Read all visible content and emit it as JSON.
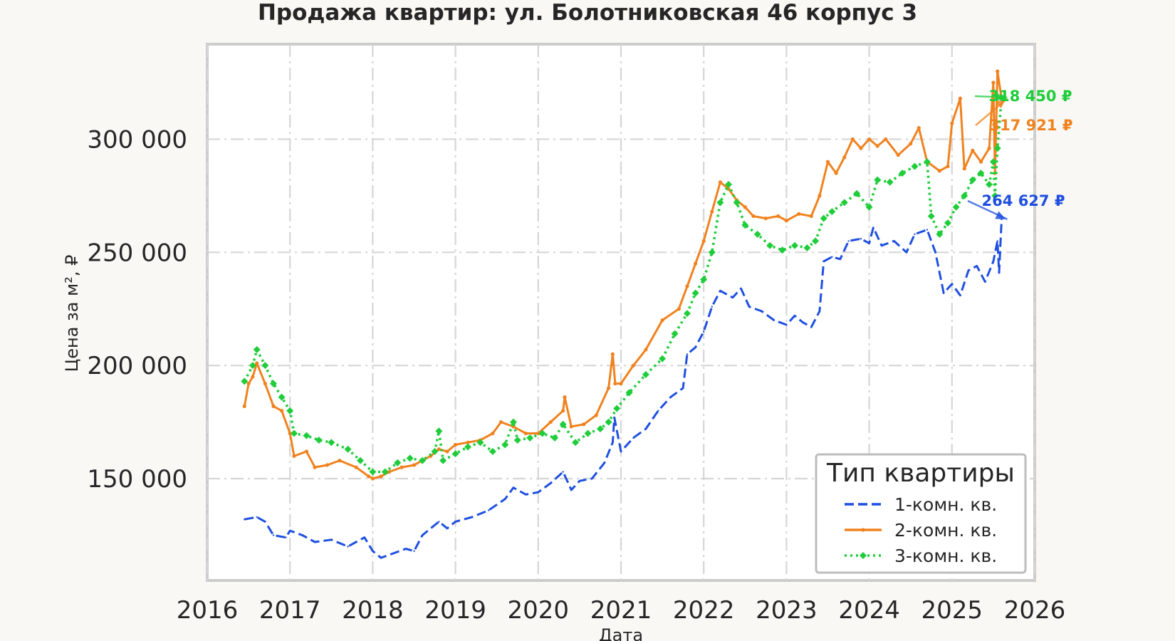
{
  "chart_data": {
    "type": "line",
    "title": "Продажа квартир: ул. Болотниковская 46 корпус 3",
    "xlabel": "Дата",
    "ylabel": "Цена за м², ₽",
    "xlim": [
      2016.0,
      2026.0
    ],
    "ylim": [
      105000,
      342000
    ],
    "x_ticks": [
      2016,
      2017,
      2018,
      2019,
      2020,
      2021,
      2022,
      2023,
      2024,
      2025,
      2026
    ],
    "x_tick_labels": [
      "2016",
      "2017",
      "2018",
      "2019",
      "2020",
      "2021",
      "2022",
      "2023",
      "2024",
      "2025",
      "2026"
    ],
    "y_ticks": [
      150000,
      200000,
      250000,
      300000
    ],
    "y_tick_labels": [
      "150 000",
      "200 000",
      "250 000",
      "300 000"
    ],
    "grid": true,
    "legend": {
      "title": "Тип квартиры",
      "placement": "lower-right"
    },
    "series": [
      {
        "name": "1-комн. кв.",
        "color": "#1f4fe0",
        "style": "dashed",
        "marker": "none",
        "last_label": "264 627 ₽",
        "points": [
          [
            2016.45,
            132000
          ],
          [
            2016.6,
            133000
          ],
          [
            2016.7,
            131000
          ],
          [
            2016.8,
            125000
          ],
          [
            2016.95,
            124000
          ],
          [
            2017.0,
            127000
          ],
          [
            2017.15,
            125000
          ],
          [
            2017.3,
            122000
          ],
          [
            2017.5,
            123000
          ],
          [
            2017.7,
            120000
          ],
          [
            2017.9,
            124000
          ],
          [
            2018.0,
            118000
          ],
          [
            2018.1,
            115000
          ],
          [
            2018.25,
            117000
          ],
          [
            2018.4,
            119000
          ],
          [
            2018.5,
            118000
          ],
          [
            2018.6,
            125000
          ],
          [
            2018.8,
            131000
          ],
          [
            2018.9,
            128000
          ],
          [
            2019.0,
            131000
          ],
          [
            2019.2,
            133000
          ],
          [
            2019.4,
            136000
          ],
          [
            2019.6,
            141000
          ],
          [
            2019.7,
            146000
          ],
          [
            2019.85,
            143000
          ],
          [
            2020.0,
            144000
          ],
          [
            2020.15,
            148000
          ],
          [
            2020.3,
            153000
          ],
          [
            2020.4,
            145000
          ],
          [
            2020.5,
            149000
          ],
          [
            2020.65,
            150000
          ],
          [
            2020.8,
            157000
          ],
          [
            2020.9,
            166000
          ],
          [
            2020.92,
            177000
          ],
          [
            2021.0,
            162000
          ],
          [
            2021.15,
            168000
          ],
          [
            2021.3,
            172000
          ],
          [
            2021.45,
            180000
          ],
          [
            2021.6,
            186000
          ],
          [
            2021.75,
            190000
          ],
          [
            2021.8,
            205000
          ],
          [
            2021.9,
            208000
          ],
          [
            2022.0,
            215000
          ],
          [
            2022.1,
            226000
          ],
          [
            2022.2,
            233000
          ],
          [
            2022.35,
            230000
          ],
          [
            2022.45,
            234000
          ],
          [
            2022.55,
            226000
          ],
          [
            2022.7,
            224000
          ],
          [
            2022.85,
            220000
          ],
          [
            2023.0,
            218000
          ],
          [
            2023.1,
            222000
          ],
          [
            2023.2,
            219000
          ],
          [
            2023.3,
            217000
          ],
          [
            2023.4,
            224000
          ],
          [
            2023.45,
            246000
          ],
          [
            2023.55,
            248000
          ],
          [
            2023.65,
            247000
          ],
          [
            2023.75,
            255000
          ],
          [
            2023.9,
            256000
          ],
          [
            2024.0,
            254000
          ],
          [
            2024.05,
            261000
          ],
          [
            2024.15,
            253000
          ],
          [
            2024.3,
            255000
          ],
          [
            2024.45,
            250000
          ],
          [
            2024.55,
            258000
          ],
          [
            2024.7,
            260000
          ],
          [
            2024.8,
            250000
          ],
          [
            2024.9,
            232000
          ],
          [
            2025.0,
            236000
          ],
          [
            2025.1,
            231000
          ],
          [
            2025.2,
            242000
          ],
          [
            2025.3,
            244000
          ],
          [
            2025.4,
            237000
          ],
          [
            2025.5,
            246000
          ],
          [
            2025.55,
            255000
          ],
          [
            2025.57,
            241000
          ],
          [
            2025.6,
            264627
          ]
        ]
      },
      {
        "name": "2-комн. кв.",
        "color": "#f0821e",
        "style": "solid",
        "marker": "star",
        "last_label": "317 921 ₽",
        "points": [
          [
            2016.45,
            182000
          ],
          [
            2016.5,
            192000
          ],
          [
            2016.55,
            195000
          ],
          [
            2016.6,
            201000
          ],
          [
            2016.7,
            192000
          ],
          [
            2016.8,
            182000
          ],
          [
            2016.9,
            180000
          ],
          [
            2017.0,
            170000
          ],
          [
            2017.05,
            160000
          ],
          [
            2017.2,
            162000
          ],
          [
            2017.3,
            155000
          ],
          [
            2017.45,
            156000
          ],
          [
            2017.6,
            158000
          ],
          [
            2017.8,
            155000
          ],
          [
            2017.95,
            151000
          ],
          [
            2018.0,
            150000
          ],
          [
            2018.1,
            151000
          ],
          [
            2018.2,
            153000
          ],
          [
            2018.35,
            155000
          ],
          [
            2018.5,
            156000
          ],
          [
            2018.6,
            158000
          ],
          [
            2018.7,
            160000
          ],
          [
            2018.8,
            163000
          ],
          [
            2018.9,
            162000
          ],
          [
            2019.0,
            165000
          ],
          [
            2019.15,
            166000
          ],
          [
            2019.3,
            167000
          ],
          [
            2019.45,
            170000
          ],
          [
            2019.55,
            175000
          ],
          [
            2019.7,
            173000
          ],
          [
            2019.85,
            170000
          ],
          [
            2020.0,
            170000
          ],
          [
            2020.15,
            175000
          ],
          [
            2020.3,
            180000
          ],
          [
            2020.32,
            186000
          ],
          [
            2020.4,
            173000
          ],
          [
            2020.55,
            174000
          ],
          [
            2020.7,
            178000
          ],
          [
            2020.85,
            190000
          ],
          [
            2020.9,
            205000
          ],
          [
            2020.93,
            192000
          ],
          [
            2021.0,
            192000
          ],
          [
            2021.15,
            200000
          ],
          [
            2021.3,
            207000
          ],
          [
            2021.5,
            220000
          ],
          [
            2021.7,
            225000
          ],
          [
            2021.8,
            235000
          ],
          [
            2021.9,
            245000
          ],
          [
            2022.0,
            255000
          ],
          [
            2022.1,
            268000
          ],
          [
            2022.2,
            281000
          ],
          [
            2022.3,
            278000
          ],
          [
            2022.4,
            273000
          ],
          [
            2022.5,
            270000
          ],
          [
            2022.6,
            266000
          ],
          [
            2022.75,
            265000
          ],
          [
            2022.9,
            266000
          ],
          [
            2023.0,
            264000
          ],
          [
            2023.15,
            267000
          ],
          [
            2023.3,
            266000
          ],
          [
            2023.4,
            275000
          ],
          [
            2023.5,
            290000
          ],
          [
            2023.6,
            285000
          ],
          [
            2023.7,
            292000
          ],
          [
            2023.8,
            300000
          ],
          [
            2023.9,
            296000
          ],
          [
            2024.0,
            300000
          ],
          [
            2024.1,
            297000
          ],
          [
            2024.2,
            300000
          ],
          [
            2024.35,
            293000
          ],
          [
            2024.5,
            298000
          ],
          [
            2024.6,
            305000
          ],
          [
            2024.7,
            290000
          ],
          [
            2024.85,
            286000
          ],
          [
            2024.95,
            288000
          ],
          [
            2025.0,
            307000
          ],
          [
            2025.1,
            318000
          ],
          [
            2025.15,
            287000
          ],
          [
            2025.25,
            295000
          ],
          [
            2025.35,
            290000
          ],
          [
            2025.45,
            296000
          ],
          [
            2025.5,
            325000
          ],
          [
            2025.52,
            285000
          ],
          [
            2025.55,
            330000
          ],
          [
            2025.6,
            317921
          ]
        ]
      },
      {
        "name": "3-комн. кв.",
        "color": "#1fcd3a",
        "style": "dotted",
        "marker": "diamond",
        "last_label": "318 450 ₽",
        "points": [
          [
            2016.45,
            193000
          ],
          [
            2016.55,
            200000
          ],
          [
            2016.6,
            207000
          ],
          [
            2016.7,
            200000
          ],
          [
            2016.8,
            192000
          ],
          [
            2016.9,
            186000
          ],
          [
            2017.0,
            180000
          ],
          [
            2017.05,
            170000
          ],
          [
            2017.2,
            169000
          ],
          [
            2017.35,
            167000
          ],
          [
            2017.5,
            166000
          ],
          [
            2017.7,
            163000
          ],
          [
            2017.85,
            158000
          ],
          [
            2018.0,
            153000
          ],
          [
            2018.15,
            153000
          ],
          [
            2018.3,
            157000
          ],
          [
            2018.45,
            159000
          ],
          [
            2018.6,
            158000
          ],
          [
            2018.75,
            162000
          ],
          [
            2018.8,
            171000
          ],
          [
            2018.85,
            158000
          ],
          [
            2019.0,
            161000
          ],
          [
            2019.15,
            164000
          ],
          [
            2019.3,
            166000
          ],
          [
            2019.45,
            162000
          ],
          [
            2019.6,
            165000
          ],
          [
            2019.7,
            175000
          ],
          [
            2019.75,
            167000
          ],
          [
            2019.9,
            168000
          ],
          [
            2020.05,
            170000
          ],
          [
            2020.2,
            168000
          ],
          [
            2020.3,
            174000
          ],
          [
            2020.45,
            166000
          ],
          [
            2020.6,
            170000
          ],
          [
            2020.75,
            172000
          ],
          [
            2020.85,
            175000
          ],
          [
            2020.95,
            181000
          ],
          [
            2021.1,
            188000
          ],
          [
            2021.3,
            196000
          ],
          [
            2021.5,
            203000
          ],
          [
            2021.65,
            214000
          ],
          [
            2021.8,
            223000
          ],
          [
            2021.9,
            232000
          ],
          [
            2022.0,
            238000
          ],
          [
            2022.1,
            250000
          ],
          [
            2022.2,
            272000
          ],
          [
            2022.3,
            280000
          ],
          [
            2022.4,
            272000
          ],
          [
            2022.5,
            262000
          ],
          [
            2022.65,
            258000
          ],
          [
            2022.8,
            253000
          ],
          [
            2022.95,
            251000
          ],
          [
            2023.1,
            253000
          ],
          [
            2023.25,
            252000
          ],
          [
            2023.35,
            255000
          ],
          [
            2023.45,
            265000
          ],
          [
            2023.55,
            268000
          ],
          [
            2023.7,
            272000
          ],
          [
            2023.85,
            276000
          ],
          [
            2024.0,
            270000
          ],
          [
            2024.1,
            282000
          ],
          [
            2024.25,
            281000
          ],
          [
            2024.4,
            285000
          ],
          [
            2024.55,
            288000
          ],
          [
            2024.7,
            290000
          ],
          [
            2024.75,
            266000
          ],
          [
            2024.85,
            258000
          ],
          [
            2024.95,
            263000
          ],
          [
            2025.05,
            270000
          ],
          [
            2025.15,
            275000
          ],
          [
            2025.25,
            282000
          ],
          [
            2025.35,
            285000
          ],
          [
            2025.45,
            280000
          ],
          [
            2025.5,
            290000
          ],
          [
            2025.52,
            275000
          ],
          [
            2025.55,
            296000
          ],
          [
            2025.6,
            318450
          ]
        ]
      }
    ]
  }
}
